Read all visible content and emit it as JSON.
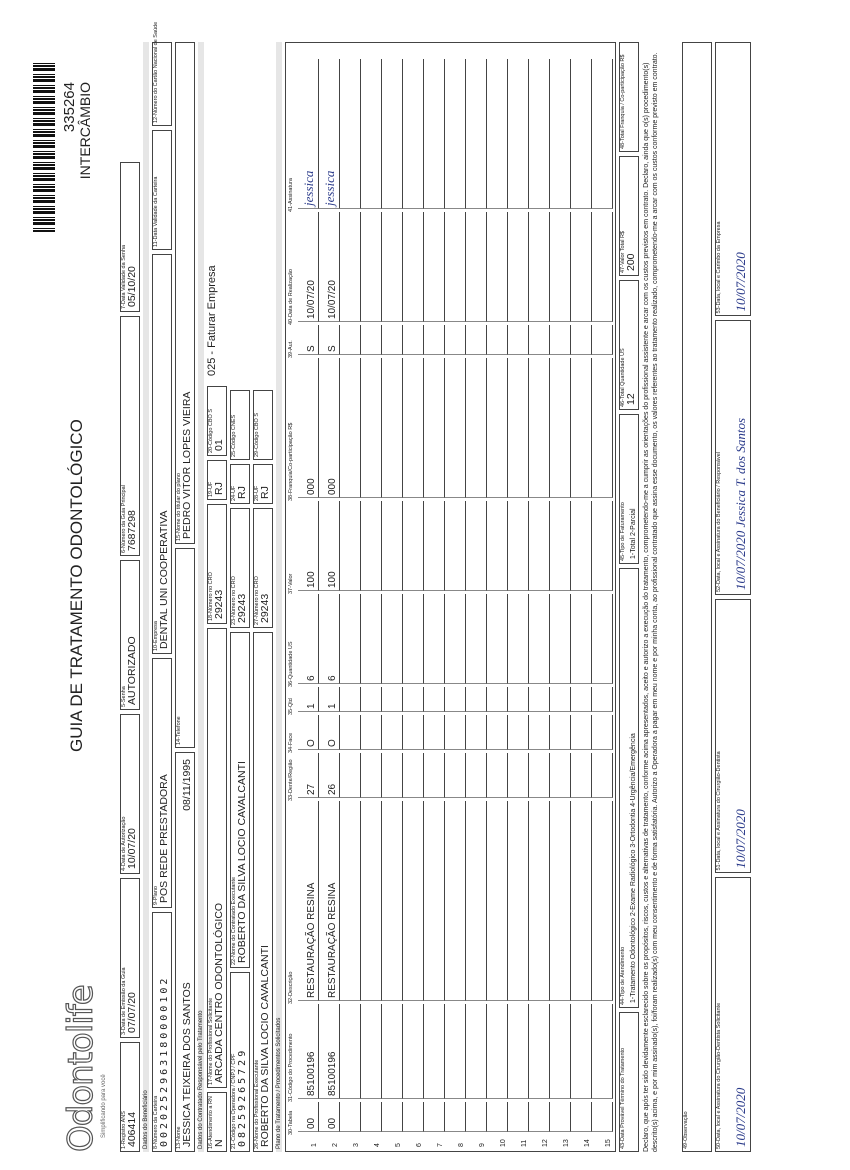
{
  "header": {
    "logo": "Odontolife",
    "tagline": "Simplificando para você",
    "title": "GUIA DE TRATAMENTO ODONTOLÓGICO",
    "guide_number": "335264",
    "guide_type": "INTERCÂMBIO"
  },
  "sections": {
    "beneficiary": "Dados do Beneficiário",
    "contractor": "Dados do Contratado Responsável pelo Tratamento",
    "plan": "Plano de Tratamento / Procedimentos Solicitados"
  },
  "fields": {
    "f1": {
      "label": "1-Registro ANS",
      "value": "406414"
    },
    "f3": {
      "label": "3-Data de Emissão da Guia",
      "value": "07/07/20"
    },
    "f4": {
      "label": "4-Data de Autorização",
      "value": "10/07/20"
    },
    "f5": {
      "label": "5-Senha",
      "value": "AUTORIZADO"
    },
    "f6": {
      "label": "6-Número da Guia Principal",
      "value": "7687298"
    },
    "f7": {
      "label": "7-Data Validade da Senha",
      "value": "05/10/20"
    },
    "f8": {
      "label": "8-Número da Carteira",
      "value": "0020252963180000102"
    },
    "f9": {
      "label": "9-Plano",
      "value": "POS REDE PRESTADORA"
    },
    "f10": {
      "label": "10-Empresa",
      "value": "DENTAL UNI COOPERATIVA"
    },
    "f11": {
      "label": "11-Data Validade da Carteira"
    },
    "f12": {
      "label": "12-Número do Cartão Nacional de Saúde"
    },
    "f13": {
      "label": "13-Nome",
      "value": "JESSICA TEIXEIRA DOS SANTOS",
      "extra": "08/11/1995"
    },
    "f14": {
      "label": "14-Telefone"
    },
    "f15": {
      "label": "15-Nome do titular do plano",
      "value": "PEDRO VITOR LOPES VIEIRA"
    },
    "f16": {
      "label": "16-Atendimento a RN",
      "value": "N"
    },
    "f17": {
      "label": "17-Nome do Profissional Solicitante",
      "value": "ARCADA CENTRO ODONTOLÓGICO"
    },
    "f18": {
      "label": "18-Número no CRO",
      "value": "29243"
    },
    "f19": {
      "label": "19-UF",
      "value": "RJ"
    },
    "f20": {
      "label": "20-Código CBO S",
      "value": "01"
    },
    "f21": {
      "label": "21-Código na Operadora / CNPJ / CPF",
      "value": "08259265729"
    },
    "f22": {
      "label": "22-Nome do Contratado Executante",
      "value": "ROBERTO DA SILVA LOCIO CAVALCANTI"
    },
    "f23": {
      "label": "23-Número no CRO",
      "value": "29243"
    },
    "f24": {
      "label": "24-UF",
      "value": "RJ"
    },
    "f25": {
      "label": "25-Código CNES"
    },
    "f26": {
      "label": "26-Nome do Profissional Executante",
      "value": "ROBERTO DA SILVA LOCIO CAVALCANTI"
    },
    "f27": {
      "label": "27-Número no CRO",
      "value": "29243"
    },
    "f28": {
      "label": "28-UF",
      "value": "RJ"
    },
    "f29": {
      "label": "29-Código CBO S"
    },
    "f43": {
      "label": "43-Data Provável Término do Tratamento"
    },
    "f44": {
      "label": "44-Tipo de Atendimento",
      "value": "1-Tratamento Odontológico 2-Exame Radiológico 3-Ortodontia 4-Urgência/Emergência"
    },
    "f45": {
      "label": "45-Tipo de Faturamento",
      "value": "1-Total 2-Parcial"
    },
    "f46": {
      "label": "46-Total Quantidade US",
      "value": "12"
    },
    "f47": {
      "label": "47-Valor Total R$",
      "value": "200"
    },
    "f48": {
      "label": "48-Total Franquia / Co-participação R$"
    },
    "f49": {
      "label": "49-Observação"
    },
    "f50": {
      "label": "50-Data, local e Assinatura do Cirurgião-Dentista Solicitante",
      "value": "10/07/2020"
    },
    "f51": {
      "label": "51-Data, local e Assinatura do Cirurgião-Dentista",
      "value": "10/07/2020"
    },
    "f52": {
      "label": "52-Data, local e Assinatura do Beneficiário / Responsável",
      "value": "10/07/2020 Jessica T. dos Santos"
    },
    "f53": {
      "label": "53-Data, local e Carimbo da Empresa",
      "value": "10/07/2020"
    }
  },
  "billing_note": "025 - Faturar Empresa",
  "procedures": {
    "columns": [
      "30-Tabela",
      "31-Código do Procedimento",
      "32-Descrição",
      "33-Dente/Região",
      "34-Face",
      "35-Qtd",
      "36-Quantidade US",
      "37-Valor",
      "38-Franquia/Co-participação R$",
      "39-Aut.",
      "40-Data de Realização",
      "41-Assinatura"
    ],
    "rows": [
      [
        "1",
        "00",
        "85100196",
        "RESTAURAÇÃO RESINA",
        "27",
        "O",
        "1",
        "6",
        "100",
        "000",
        "S",
        "10/07/20",
        "jessica"
      ],
      [
        "2",
        "00",
        "85100196",
        "RESTAURAÇÃO RESINA",
        "26",
        "O",
        "1",
        "6",
        "100",
        "000",
        "S",
        "10/07/20",
        "jessica"
      ],
      [
        "3"
      ],
      [
        "4"
      ],
      [
        "5"
      ],
      [
        "6"
      ],
      [
        "7"
      ],
      [
        "8"
      ],
      [
        "9"
      ],
      [
        "10"
      ],
      [
        "11"
      ],
      [
        "12"
      ],
      [
        "13"
      ],
      [
        "14"
      ],
      [
        "15"
      ]
    ]
  },
  "declaration": "Declaro, que após ter sido devidamente esclarecido sobre os propósitos, riscos, custos e alternativas de tratamento, conforme acima apresentados, aceito e autorizo a execução do tratamento, comprometendo-me a cumprir as orientações do profissional assistente e arcar com os custos previstos em contrato. Declaro, ainda que o(s) procedimento(s) descrito(s) acima, e por mim assinado(s), foi/foram realizado(s) com meu consentimento e de forma satisfatória. Autorizo a Operadora a pagar em meu nome e por minha conta, ao profissional contratado que assina esse documento, os valores referentes ao tratamento realizado, comprometendo-me a arcar com os custos conforme previsto em contrato."
}
